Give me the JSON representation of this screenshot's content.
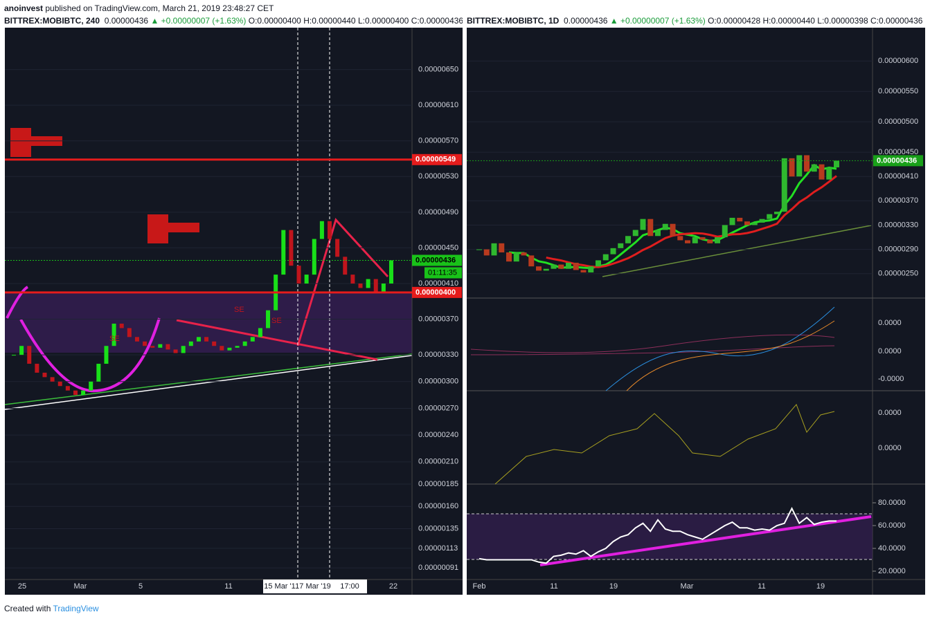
{
  "header": {
    "author": "anoinvest",
    "published": "published on TradingView.com, March 21, 2019 23:48:27 CET"
  },
  "left": {
    "symbol": "BITTREX:MOBIBTC, 240",
    "last": "0.00000436",
    "change": "▲ +0.00000007 (+1.63%)",
    "open": "O:0.00000400",
    "high": "H:0.00000440",
    "low": "L:0.00000400",
    "close": "C:0.00000436",
    "ylim": [
      7.8e-07,
      6.97e-06
    ],
    "yticks": [
      {
        "value": 6.5e-06,
        "label": "0.00000650"
      },
      {
        "value": 6.1e-06,
        "label": "0.00000610"
      },
      {
        "value": 5.7e-06,
        "label": "0.00000570"
      },
      {
        "value": 5.3e-06,
        "label": "0.00000530"
      },
      {
        "value": 4.9e-06,
        "label": "0.00000490"
      },
      {
        "value": 4.5e-06,
        "label": "0.00000450"
      },
      {
        "value": 4.1e-06,
        "label": "0.00000410"
      },
      {
        "value": 3.7e-06,
        "label": "0.00000370"
      },
      {
        "value": 3.3e-06,
        "label": "0.00000330"
      },
      {
        "value": 3e-06,
        "label": "0.00000300"
      },
      {
        "value": 2.7e-06,
        "label": "0.00000270"
      },
      {
        "value": 2.4e-06,
        "label": "0.00000240"
      },
      {
        "value": 2.1e-06,
        "label": "0.00000210"
      },
      {
        "value": 1.85e-06,
        "label": "0.00000185"
      },
      {
        "value": 1.6e-06,
        "label": "0.00000160"
      },
      {
        "value": 1.35e-06,
        "label": "0.00000135"
      },
      {
        "value": 1.13e-06,
        "label": "0.00000113"
      },
      {
        "value": 9.1e-07,
        "label": "0.00000091"
      }
    ],
    "time_labels": [
      "25",
      "Mar",
      "5",
      "11",
      "22"
    ],
    "crosshair_labels": [
      "15 Mar '1",
      "17 Mar '19",
      "17:00"
    ],
    "price_tags": [
      {
        "value": 5.49e-06,
        "label": "0.00000549",
        "color": "#e51c1c"
      },
      {
        "value": 4.36e-06,
        "label": "0.00000436",
        "color": "#19c219"
      },
      {
        "value": 4e-06,
        "label": "0.00000400",
        "color": "#e51c1c"
      }
    ],
    "countdown": "01:11:35",
    "markers": [
      "SE",
      "SE",
      "SE"
    ],
    "closes": [
      3.3e-06,
      3.4e-06,
      3.2e-06,
      3.1e-06,
      3.05e-06,
      3e-06,
      2.95e-06,
      2.9e-06,
      2.85e-06,
      2.9e-06,
      3e-06,
      3.2e-06,
      3.4e-06,
      3.65e-06,
      3.6e-06,
      3.5e-06,
      3.45e-06,
      3.4e-06,
      3.38e-06,
      3.42e-06,
      3.36e-06,
      3.32e-06,
      3.4e-06,
      3.45e-06,
      3.5e-06,
      3.45e-06,
      3.4e-06,
      3.35e-06,
      3.38e-06,
      3.4e-06,
      3.45e-06,
      3.5e-06,
      3.6e-06,
      3.8e-06,
      4.2e-06,
      4.7e-06,
      4.3e-06,
      4.1e-06,
      4.2e-06,
      4.6e-06,
      4.8e-06,
      4.6e-06,
      4.4e-06,
      4.2e-06,
      4.1e-06,
      4.05e-06,
      4.15e-06,
      4e-06,
      4.1e-06,
      4.36e-06
    ]
  },
  "right": {
    "symbol": "BITTREX:MOBIBTC, 1D",
    "last": "0.00000436",
    "change": "▲ +0.00000007 (+1.63%)",
    "open": "O:0.00000428",
    "high": "H:0.00000440",
    "low": "L:0.00000398",
    "close": "C:0.00000436",
    "ylim": [
      2.11e-06,
      6.55e-06
    ],
    "yticks": [
      {
        "value": 6e-06,
        "label": "0.00000600"
      },
      {
        "value": 5.5e-06,
        "label": "0.00000550"
      },
      {
        "value": 5e-06,
        "label": "0.00000500"
      },
      {
        "value": 4.5e-06,
        "label": "0.00000450"
      },
      {
        "value": 4.1e-06,
        "label": "0.00000410"
      },
      {
        "value": 3.7e-06,
        "label": "0.00000370"
      },
      {
        "value": 3.3e-06,
        "label": "0.00000330"
      },
      {
        "value": 2.9e-06,
        "label": "0.00000290"
      },
      {
        "value": 2.5e-06,
        "label": "0.00000250"
      }
    ],
    "price_tag": {
      "value": 4.36e-06,
      "label": "0.00000436"
    },
    "time_labels": [
      "Feb",
      "11",
      "19",
      "Mar",
      "11",
      "19"
    ],
    "macd_labels": [
      "0.0000",
      "0.0000",
      "-0.0000"
    ],
    "osc_labels": [
      "0.0000",
      "0.0000"
    ],
    "rsi_ylim": [
      12.7,
      96.4
    ],
    "rsi_ticks": [
      {
        "value": 80,
        "label": "80.0000"
      },
      {
        "value": 60,
        "label": "60.0000"
      },
      {
        "value": 40,
        "label": "40.0000"
      },
      {
        "value": 20,
        "label": "20.0000"
      }
    ],
    "closes": [
      2.9e-06,
      2.8e-06,
      3e-06,
      2.85e-06,
      2.7e-06,
      2.85e-06,
      2.8e-06,
      2.62e-06,
      2.55e-06,
      2.58e-06,
      2.65e-06,
      2.58e-06,
      2.68e-06,
      2.56e-06,
      2.52e-06,
      2.62e-06,
      2.72e-06,
      2.82e-06,
      2.92e-06,
      3e-06,
      3.12e-06,
      3.22e-06,
      3.4e-06,
      3.12e-06,
      3.22e-06,
      3.32e-06,
      3.12e-06,
      3.05e-06,
      3e-06,
      3.1e-06,
      3.06e-06,
      3e-06,
      3.1e-06,
      3.3e-06,
      3.42e-06,
      3.36e-06,
      3.3e-06,
      3.34e-06,
      3.4e-06,
      3.48e-06,
      3.52e-06,
      4.4e-06,
      4.1e-06,
      4.45e-06,
      4.18e-06,
      4.3e-06,
      4.05e-06,
      4.25e-06,
      4.36e-06
    ],
    "rsi": [
      31,
      30,
      30,
      30,
      30,
      30,
      30,
      30,
      28,
      27,
      33,
      34,
      36,
      35,
      38,
      33,
      37,
      40,
      46,
      50,
      52,
      58,
      62,
      55,
      65,
      57,
      55,
      55,
      52,
      50,
      48,
      52,
      56,
      60,
      63,
      58,
      58,
      56,
      57,
      56,
      60,
      62,
      75,
      62,
      67,
      61,
      63,
      64,
      64
    ]
  },
  "footer": {
    "created": "Created with",
    "brand": "TradingView"
  }
}
